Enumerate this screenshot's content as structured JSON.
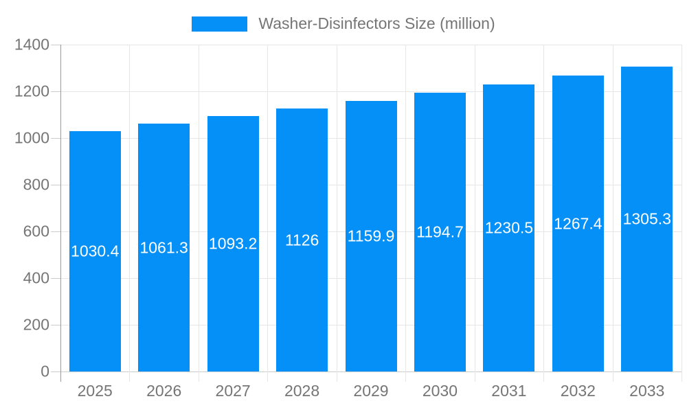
{
  "chart_data": {
    "type": "bar",
    "title": "Washer-Disinfectors Size (million)",
    "series": [
      {
        "name": "Washer-Disinfectors Size (million)",
        "values": [
          1030.4,
          1061.3,
          1093.2,
          1126,
          1159.9,
          1194.7,
          1230.5,
          1267.4,
          1305.3
        ]
      }
    ],
    "categories": [
      "2025",
      "2026",
      "2027",
      "2028",
      "2029",
      "2030",
      "2031",
      "2032",
      "2033"
    ],
    "value_labels": [
      "1030.4",
      "1061.3",
      "1093.2",
      "1126",
      "1159.9",
      "1194.7",
      "1230.5",
      "1267.4",
      "1305.3"
    ],
    "xlabel": "",
    "ylabel": "",
    "ylim": [
      0,
      1400
    ],
    "yticks": [
      0,
      200,
      400,
      600,
      800,
      1000,
      1200,
      1400
    ],
    "grid": true,
    "legend_position": "top-center",
    "colors": {
      "bar": "#0590f8",
      "value_label": "#ffffff",
      "axis_text": "#757575",
      "legend_text": "#757575",
      "gridline": "#e6e6e6",
      "baseline": "#cccccc",
      "y_axis_line": "#999999",
      "tick": "#cccccc",
      "background": "#ffffff"
    }
  }
}
